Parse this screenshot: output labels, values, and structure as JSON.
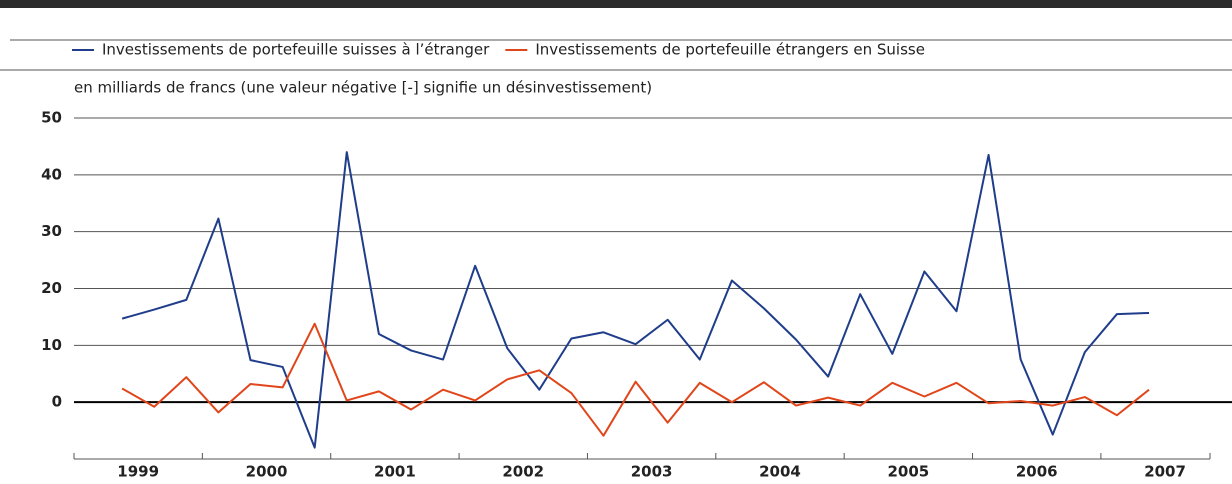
{
  "chart_data": {
    "type": "line",
    "subtitle": "en milliards de francs (une valeur négative [-] signifie un désinvestissement)",
    "x": [
      1999.375,
      1999.625,
      1999.875,
      2000.125,
      2000.375,
      2000.625,
      2000.875,
      2001.125,
      2001.375,
      2001.625,
      2001.875,
      2002.125,
      2002.375,
      2002.625,
      2002.875,
      2003.125,
      2003.375,
      2003.625,
      2003.875,
      2004.125,
      2004.375,
      2004.625,
      2004.875,
      2005.125,
      2005.375,
      2005.625,
      2005.875,
      2006.125,
      2006.375,
      2006.625,
      2006.875,
      2007.125,
      2007.375
    ],
    "series": [
      {
        "name": "Investissements de portefeuille suisses à l’étranger",
        "color": "#1f3d8a",
        "values": [
          14.7,
          16.3,
          18,
          32.3,
          7.4,
          6.2,
          -8,
          44,
          12,
          9.1,
          7.5,
          24,
          9.5,
          2.2,
          11.2,
          12.3,
          10.2,
          14.5,
          7.5,
          21.4,
          16.5,
          11,
          4.5,
          19,
          8.5,
          23,
          16,
          43.5,
          7.5,
          -5.7,
          8.8,
          15.5,
          15.7
        ]
      },
      {
        "name": "Investissements de portefeuille étrangers en Suisse",
        "color": "#e0461a",
        "values": [
          2.4,
          -0.8,
          4.4,
          -1.8,
          3.2,
          2.6,
          13.8,
          0.3,
          1.9,
          -1.3,
          2.2,
          0.3,
          4,
          5.6,
          1.6,
          -5.9,
          3.6,
          -3.6,
          3.4,
          0,
          3.5,
          -0.6,
          0.8,
          -0.6,
          3.4,
          1,
          3.4,
          -0.2,
          0.2,
          -0.6,
          0.9,
          -2.3,
          2.2
        ]
      }
    ],
    "xlim": [
      1999,
      2007.85
    ],
    "xticks": [
      {
        "value": 1999.5,
        "label": "1999"
      },
      {
        "value": 2000.5,
        "label": "2000"
      },
      {
        "value": 2001.5,
        "label": "2001"
      },
      {
        "value": 2002.5,
        "label": "2002"
      },
      {
        "value": 2003.5,
        "label": "2003"
      },
      {
        "value": 2004.5,
        "label": "2004"
      },
      {
        "value": 2005.5,
        "label": "2005"
      },
      {
        "value": 2006.5,
        "label": "2006"
      },
      {
        "value": 2007.5,
        "label": "2007"
      }
    ],
    "ylim": [
      -10,
      50
    ],
    "yticks": [
      0,
      10,
      20,
      30,
      40,
      50
    ],
    "grid": true
  }
}
